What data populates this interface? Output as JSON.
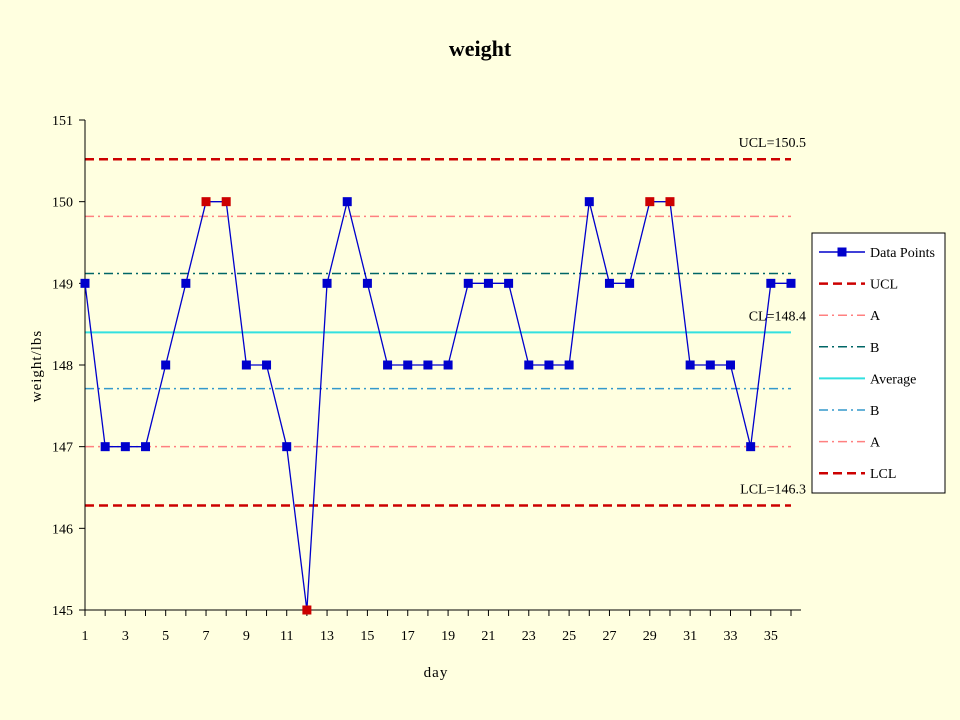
{
  "chart_data": {
    "type": "line",
    "title": "weight",
    "xlabel": "day",
    "ylabel": "weight/lbs",
    "xlim": [
      1,
      36
    ],
    "ylim": [
      145,
      151
    ],
    "x_tick_labels": [
      "1",
      "3",
      "5",
      "7",
      "9",
      "11",
      "13",
      "15",
      "17",
      "19",
      "21",
      "23",
      "25",
      "27",
      "29",
      "31",
      "33",
      "35"
    ],
    "y_tick_labels": [
      "145",
      "146",
      "147",
      "148",
      "149",
      "150",
      "151"
    ],
    "grid": false,
    "legend_position": "right",
    "series": [
      {
        "name": "Data Points",
        "color": "#0000CC",
        "marker": "square",
        "x": [
          1,
          2,
          3,
          4,
          5,
          6,
          7,
          8,
          9,
          10,
          11,
          12,
          13,
          14,
          15,
          16,
          17,
          18,
          19,
          20,
          21,
          22,
          23,
          24,
          25,
          26,
          27,
          28,
          29,
          30,
          31,
          32,
          33,
          34,
          35,
          36
        ],
        "y": [
          149,
          147,
          147,
          147,
          148,
          149,
          150,
          150,
          148,
          148,
          147,
          145,
          149,
          150,
          149,
          148,
          148,
          148,
          148,
          149,
          149,
          149,
          148,
          148,
          148,
          150,
          149,
          149,
          150,
          150,
          148,
          148,
          148,
          147,
          149,
          149
        ],
        "highlighted_points_x": [
          7,
          8,
          12,
          29,
          30
        ],
        "highlight_color": "#CC0000"
      }
    ],
    "reference_lines": [
      {
        "name": "UCL",
        "value": 150.52,
        "color": "#CC0000",
        "dash": "dashed",
        "annotation": "UCL=150.5"
      },
      {
        "name": "A",
        "value": 149.82,
        "color": "#FF8080",
        "dash": "dashdot",
        "annotation": ""
      },
      {
        "name": "B",
        "value": 149.12,
        "color": "#006666",
        "dash": "dashdot",
        "annotation": ""
      },
      {
        "name": "Average",
        "value": 148.4,
        "color": "#33E0E0",
        "dash": "solid",
        "annotation": "CL=148.4"
      },
      {
        "name": "B",
        "value": 147.71,
        "color": "#3399CC",
        "dash": "dashdot",
        "annotation": ""
      },
      {
        "name": "A",
        "value": 147.0,
        "color": "#FF8080",
        "dash": "dashdot",
        "annotation": ""
      },
      {
        "name": "LCL",
        "value": 146.28,
        "color": "#CC0000",
        "dash": "dashed",
        "annotation": "LCL=146.3"
      }
    ],
    "legend": [
      "Data Points",
      "UCL",
      "A",
      "B",
      "Average",
      "B",
      "A",
      "LCL"
    ]
  }
}
